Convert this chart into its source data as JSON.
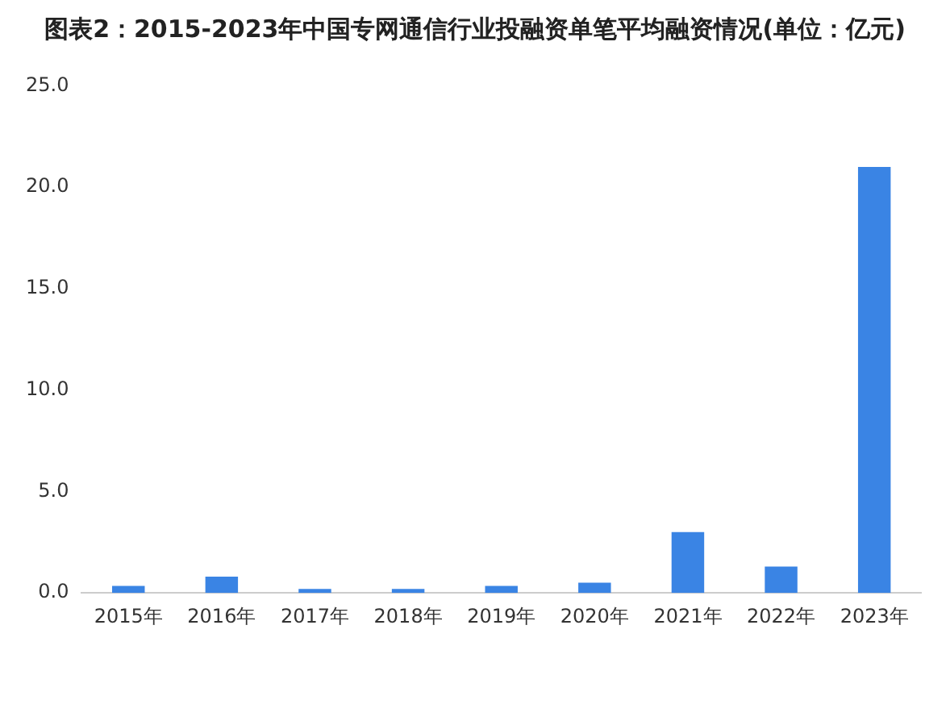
{
  "chart_data": {
    "type": "bar",
    "title": "图表2：2015-2023年中国专网通信行业投融资单笔平均融资情况(单位：亿元)",
    "categories": [
      "2015年",
      "2016年",
      "2017年",
      "2018年",
      "2019年",
      "2020年",
      "2021年",
      "2022年",
      "2023年"
    ],
    "values": [
      0.35,
      0.8,
      0.2,
      0.2,
      0.35,
      0.5,
      3.0,
      1.3,
      21.0
    ],
    "color": "#3a84e4",
    "ylim": [
      0,
      25
    ],
    "yticks": [
      {
        "value": 0,
        "label": "0.0"
      },
      {
        "value": 5,
        "label": "5.0"
      },
      {
        "value": 10,
        "label": "10.0"
      },
      {
        "value": 15,
        "label": "15.0"
      },
      {
        "value": 20,
        "label": "20.0"
      },
      {
        "value": 25,
        "label": "25.0"
      }
    ],
    "grid": false
  }
}
